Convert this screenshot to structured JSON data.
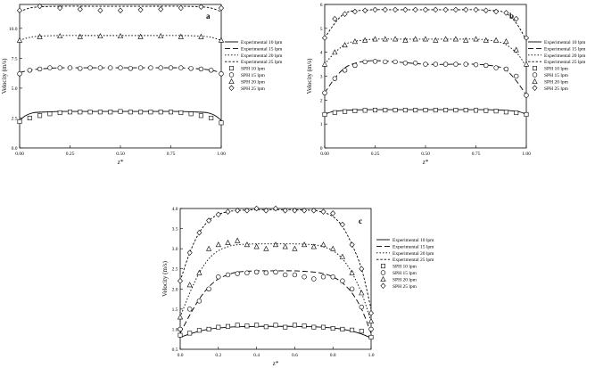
{
  "chart_data": [
    {
      "panel_label": "a",
      "type": "line",
      "xlabel": "z*",
      "ylabel": "Velocity (m/s)",
      "xlim": [
        0.0,
        1.0
      ],
      "ylim": [
        0.0,
        12.0
      ],
      "xticks": [
        "0.00",
        "0.25",
        "0.50",
        "0.75",
        "1.00"
      ],
      "xtick_values": [
        0,
        0.25,
        0.5,
        0.75,
        1.0
      ],
      "yticks": [
        "0.0",
        "2.5",
        "5.0",
        "7.5",
        "10.0"
      ],
      "ytick_values": [
        0,
        2.5,
        5,
        7.5,
        10
      ],
      "grid": false,
      "legend_position": "right",
      "series": [
        {
          "name": "Experimental 10 lpm",
          "style": "solid",
          "x": [
            0,
            0.03,
            0.07,
            0.12,
            0.2,
            0.3,
            0.5,
            0.7,
            0.8,
            0.88,
            0.93,
            0.97,
            1.0
          ],
          "y": [
            2.3,
            2.7,
            2.95,
            3.0,
            3.05,
            3.05,
            3.05,
            3.05,
            3.05,
            3.0,
            2.95,
            2.7,
            2.3
          ]
        },
        {
          "name": "Experimental 15 lpm",
          "style": "dashed",
          "x": [
            0,
            0.05,
            0.1,
            0.2,
            0.35,
            0.5,
            0.65,
            0.8,
            0.9,
            0.95,
            1.0
          ],
          "y": [
            6.3,
            6.5,
            6.6,
            6.7,
            6.7,
            6.7,
            6.7,
            6.7,
            6.6,
            6.5,
            6.3
          ]
        },
        {
          "name": "Experimental 20 lpm",
          "style": "dotted",
          "x": [
            0,
            0.05,
            0.1,
            0.2,
            0.35,
            0.5,
            0.65,
            0.8,
            0.9,
            0.95,
            1.0
          ],
          "y": [
            9.0,
            9.25,
            9.35,
            9.4,
            9.4,
            9.4,
            9.4,
            9.4,
            9.35,
            9.25,
            9.0
          ]
        },
        {
          "name": "Experimental 25 lpm",
          "style": "shortdot",
          "x": [
            0,
            0.05,
            0.1,
            0.2,
            0.35,
            0.5,
            0.65,
            0.8,
            0.9,
            0.95,
            1.0
          ],
          "y": [
            11.4,
            11.7,
            11.8,
            11.85,
            11.85,
            11.85,
            11.85,
            11.85,
            11.8,
            11.7,
            11.4
          ]
        },
        {
          "name": "SPH 10 lpm",
          "marker": "square",
          "x": [
            0.0,
            0.05,
            0.1,
            0.15,
            0.2,
            0.25,
            0.3,
            0.35,
            0.4,
            0.45,
            0.5,
            0.55,
            0.6,
            0.65,
            0.7,
            0.75,
            0.8,
            0.85,
            0.9,
            0.95,
            1.0
          ],
          "y": [
            2.2,
            2.5,
            2.7,
            2.85,
            2.95,
            3.0,
            3.0,
            3.0,
            3.0,
            3.0,
            3.05,
            3.0,
            3.0,
            3.0,
            3.0,
            3.0,
            2.95,
            2.85,
            2.7,
            2.5,
            2.1
          ]
        },
        {
          "name": "SPH 15 lpm",
          "marker": "circle",
          "x": [
            0.0,
            0.05,
            0.1,
            0.15,
            0.2,
            0.25,
            0.3,
            0.35,
            0.4,
            0.45,
            0.5,
            0.55,
            0.6,
            0.65,
            0.7,
            0.75,
            0.8,
            0.85,
            0.9,
            0.95,
            1.0
          ],
          "y": [
            6.2,
            6.5,
            6.6,
            6.7,
            6.7,
            6.7,
            6.65,
            6.7,
            6.7,
            6.7,
            6.7,
            6.65,
            6.7,
            6.7,
            6.7,
            6.7,
            6.7,
            6.65,
            6.6,
            6.5,
            6.2
          ]
        },
        {
          "name": "SPH 20 lpm",
          "marker": "triangle",
          "x": [
            0.0,
            0.1,
            0.2,
            0.3,
            0.4,
            0.5,
            0.6,
            0.7,
            0.8,
            0.9,
            1.0
          ],
          "y": [
            9.0,
            9.3,
            9.35,
            9.3,
            9.35,
            9.35,
            9.3,
            9.35,
            9.3,
            9.3,
            9.0
          ]
        },
        {
          "name": "SPH 25 lpm",
          "marker": "diamond",
          "x": [
            0.0,
            0.1,
            0.2,
            0.3,
            0.4,
            0.5,
            0.6,
            0.7,
            0.8,
            0.9,
            1.0
          ],
          "y": [
            11.5,
            11.85,
            11.7,
            11.6,
            11.5,
            11.5,
            11.55,
            11.6,
            11.7,
            11.8,
            11.7
          ]
        }
      ]
    },
    {
      "panel_label": "b",
      "type": "line",
      "xlabel": "z*",
      "ylabel": "Velocity (m/s)",
      "xlim": [
        0.0,
        1.0
      ],
      "ylim": [
        0,
        6
      ],
      "xticks": [
        "0.00",
        "0.25",
        "0.50",
        "0.75",
        "1.00"
      ],
      "xtick_values": [
        0,
        0.25,
        0.5,
        0.75,
        1.0
      ],
      "yticks": [
        "0",
        "1",
        "2",
        "3",
        "4",
        "5",
        "6"
      ],
      "ytick_values": [
        0,
        1,
        2,
        3,
        4,
        5,
        6
      ],
      "grid": false,
      "legend_position": "right",
      "series": [
        {
          "name": "Experimental 10 lpm",
          "style": "solid",
          "x": [
            0,
            0.03,
            0.07,
            0.12,
            0.2,
            0.3,
            0.5,
            0.7,
            0.8,
            0.88,
            0.93,
            0.97,
            1.0
          ],
          "y": [
            1.4,
            1.5,
            1.55,
            1.58,
            1.6,
            1.6,
            1.6,
            1.6,
            1.6,
            1.58,
            1.55,
            1.5,
            1.4
          ]
        },
        {
          "name": "Experimental 15 lpm",
          "style": "dashed",
          "x": [
            0,
            0.04,
            0.08,
            0.12,
            0.18,
            0.25,
            0.35,
            0.5,
            0.65,
            0.75,
            0.82,
            0.88,
            0.92,
            0.96,
            1.0
          ],
          "y": [
            2.3,
            2.8,
            3.2,
            3.45,
            3.6,
            3.65,
            3.6,
            3.5,
            3.5,
            3.5,
            3.45,
            3.35,
            3.1,
            2.7,
            2.2
          ]
        },
        {
          "name": "Experimental 20 lpm",
          "style": "dotted",
          "x": [
            0,
            0.04,
            0.08,
            0.12,
            0.18,
            0.25,
            0.35,
            0.5,
            0.65,
            0.75,
            0.82,
            0.88,
            0.92,
            0.96,
            1.0
          ],
          "y": [
            3.5,
            3.9,
            4.2,
            4.4,
            4.5,
            4.55,
            4.55,
            4.55,
            4.55,
            4.55,
            4.5,
            4.4,
            4.2,
            3.9,
            3.4
          ]
        },
        {
          "name": "Experimental 25 lpm",
          "style": "shortdot",
          "x": [
            0,
            0.04,
            0.08,
            0.12,
            0.18,
            0.25,
            0.35,
            0.5,
            0.65,
            0.75,
            0.82,
            0.88,
            0.92,
            0.96,
            1.0
          ],
          "y": [
            4.6,
            5.1,
            5.5,
            5.7,
            5.75,
            5.78,
            5.78,
            5.78,
            5.78,
            5.78,
            5.75,
            5.7,
            5.5,
            5.1,
            4.5
          ]
        },
        {
          "name": "SPH 10 lpm",
          "marker": "square",
          "x": [
            0.0,
            0.05,
            0.1,
            0.15,
            0.2,
            0.25,
            0.3,
            0.35,
            0.4,
            0.45,
            0.5,
            0.55,
            0.6,
            0.65,
            0.7,
            0.75,
            0.8,
            0.85,
            0.9,
            0.95,
            1.0
          ],
          "y": [
            1.4,
            1.48,
            1.52,
            1.55,
            1.57,
            1.58,
            1.58,
            1.58,
            1.58,
            1.58,
            1.58,
            1.58,
            1.58,
            1.58,
            1.58,
            1.57,
            1.56,
            1.54,
            1.5,
            1.47,
            1.4
          ]
        },
        {
          "name": "SPH 15 lpm",
          "marker": "circle",
          "x": [
            0.0,
            0.05,
            0.1,
            0.15,
            0.2,
            0.25,
            0.3,
            0.35,
            0.4,
            0.45,
            0.5,
            0.55,
            0.6,
            0.65,
            0.7,
            0.75,
            0.8,
            0.85,
            0.9,
            0.95,
            1.0
          ],
          "y": [
            2.3,
            2.9,
            3.25,
            3.45,
            3.6,
            3.62,
            3.6,
            3.6,
            3.55,
            3.55,
            3.5,
            3.5,
            3.5,
            3.5,
            3.5,
            3.48,
            3.45,
            3.35,
            3.3,
            3.0,
            2.2
          ]
        },
        {
          "name": "SPH 20 lpm",
          "marker": "triangle",
          "x": [
            0.0,
            0.05,
            0.1,
            0.15,
            0.2,
            0.25,
            0.3,
            0.35,
            0.4,
            0.45,
            0.5,
            0.55,
            0.6,
            0.65,
            0.7,
            0.75,
            0.8,
            0.85,
            0.9,
            0.95,
            1.0
          ],
          "y": [
            3.5,
            4.0,
            4.3,
            4.45,
            4.5,
            4.55,
            4.55,
            4.55,
            4.5,
            4.55,
            4.55,
            4.5,
            4.55,
            4.55,
            4.5,
            4.55,
            4.5,
            4.5,
            4.45,
            4.1,
            3.5
          ]
        },
        {
          "name": "SPH 25 lpm",
          "marker": "diamond",
          "x": [
            0.0,
            0.05,
            0.1,
            0.15,
            0.2,
            0.25,
            0.3,
            0.35,
            0.4,
            0.45,
            0.5,
            0.55,
            0.6,
            0.65,
            0.7,
            0.75,
            0.8,
            0.85,
            0.9,
            0.95,
            1.0
          ],
          "y": [
            4.6,
            5.4,
            5.6,
            5.7,
            5.75,
            5.78,
            5.78,
            5.78,
            5.78,
            5.78,
            5.78,
            5.78,
            5.78,
            5.78,
            5.78,
            5.78,
            5.75,
            5.7,
            5.65,
            5.4,
            4.6
          ]
        }
      ]
    },
    {
      "panel_label": "c",
      "type": "line",
      "xlabel": "z*",
      "ylabel": "Velocity (m/s)",
      "xlim": [
        0.0,
        1.0
      ],
      "ylim": [
        0.5,
        4.0
      ],
      "xticks": [
        "0.0",
        "0.2",
        "0.4",
        "0.6",
        "0.8",
        "1.0"
      ],
      "xtick_values": [
        0,
        0.2,
        0.4,
        0.6,
        0.8,
        1.0
      ],
      "yticks": [
        "0.5",
        "1.0",
        "1.5",
        "2.0",
        "2.5",
        "3.0",
        "3.5",
        "4.0"
      ],
      "ytick_values": [
        0.5,
        1.0,
        1.5,
        2.0,
        2.5,
        3.0,
        3.5,
        4.0
      ],
      "grid": false,
      "legend_position": "right",
      "series": [
        {
          "name": "Experimental 10 lpm",
          "style": "solid",
          "x": [
            0,
            0.05,
            0.1,
            0.15,
            0.2,
            0.3,
            0.4,
            0.5,
            0.6,
            0.7,
            0.8,
            0.85,
            0.9,
            0.95,
            1.0
          ],
          "y": [
            0.8,
            0.88,
            0.95,
            1.0,
            1.03,
            1.06,
            1.07,
            1.07,
            1.07,
            1.06,
            1.03,
            1.0,
            0.95,
            0.88,
            0.78
          ]
        },
        {
          "name": "Experimental 15 lpm",
          "style": "dashed",
          "x": [
            0,
            0.05,
            0.1,
            0.15,
            0.2,
            0.25,
            0.3,
            0.4,
            0.5,
            0.6,
            0.7,
            0.75,
            0.8,
            0.85,
            0.9,
            0.95,
            1.0
          ],
          "y": [
            0.9,
            1.35,
            1.75,
            2.05,
            2.25,
            2.35,
            2.42,
            2.45,
            2.45,
            2.45,
            2.42,
            2.38,
            2.3,
            2.15,
            1.9,
            1.5,
            0.9
          ]
        },
        {
          "name": "Experimental 20 lpm",
          "style": "dotted",
          "x": [
            0,
            0.05,
            0.1,
            0.15,
            0.2,
            0.25,
            0.3,
            0.4,
            0.5,
            0.6,
            0.7,
            0.75,
            0.8,
            0.85,
            0.9,
            0.95,
            1.0
          ],
          "y": [
            1.3,
            1.9,
            2.4,
            2.75,
            2.95,
            3.05,
            3.1,
            3.12,
            3.12,
            3.12,
            3.1,
            3.05,
            2.95,
            2.75,
            2.4,
            1.9,
            1.2
          ]
        },
        {
          "name": "Experimental 25 lpm",
          "style": "shortdot",
          "x": [
            0,
            0.05,
            0.1,
            0.15,
            0.2,
            0.25,
            0.3,
            0.4,
            0.5,
            0.6,
            0.7,
            0.75,
            0.8,
            0.85,
            0.9,
            0.95,
            1.0
          ],
          "y": [
            2.2,
            2.9,
            3.4,
            3.7,
            3.85,
            3.92,
            3.95,
            3.97,
            3.97,
            3.97,
            3.95,
            3.9,
            3.8,
            3.55,
            3.1,
            2.5,
            1.5
          ]
        },
        {
          "name": "SPH 10 lpm",
          "marker": "square",
          "x": [
            0.0,
            0.05,
            0.1,
            0.15,
            0.2,
            0.25,
            0.3,
            0.35,
            0.4,
            0.45,
            0.5,
            0.55,
            0.6,
            0.65,
            0.7,
            0.75,
            0.8,
            0.85,
            0.9,
            0.95,
            1.0
          ],
          "y": [
            0.85,
            0.9,
            0.97,
            1.0,
            1.05,
            1.07,
            1.1,
            1.08,
            1.1,
            1.06,
            1.1,
            1.05,
            1.1,
            1.08,
            1.05,
            1.05,
            1.02,
            1.0,
            0.98,
            0.95,
            0.8
          ]
        },
        {
          "name": "SPH 15 lpm",
          "marker": "circle",
          "x": [
            0.0,
            0.05,
            0.1,
            0.15,
            0.2,
            0.25,
            0.3,
            0.35,
            0.4,
            0.45,
            0.5,
            0.55,
            0.6,
            0.65,
            0.7,
            0.75,
            0.8,
            0.85,
            0.9,
            0.95,
            1.0
          ],
          "y": [
            1.0,
            1.5,
            1.7,
            2.0,
            2.3,
            2.35,
            2.38,
            2.4,
            2.42,
            2.4,
            2.42,
            2.35,
            2.35,
            2.3,
            2.25,
            2.3,
            2.3,
            2.2,
            2.0,
            1.55,
            1.0
          ]
        },
        {
          "name": "SPH 20 lpm",
          "marker": "triangle",
          "x": [
            0.0,
            0.05,
            0.1,
            0.15,
            0.2,
            0.25,
            0.3,
            0.35,
            0.4,
            0.45,
            0.5,
            0.55,
            0.6,
            0.65,
            0.7,
            0.75,
            0.8,
            0.85,
            0.9,
            0.95,
            1.0
          ],
          "y": [
            1.3,
            2.1,
            2.4,
            3.0,
            3.1,
            3.15,
            3.2,
            3.1,
            3.05,
            3.0,
            3.1,
            3.05,
            3.0,
            3.1,
            3.05,
            3.1,
            3.0,
            2.8,
            2.4,
            1.9,
            1.2
          ]
        },
        {
          "name": "SPH 25 lpm",
          "marker": "diamond",
          "x": [
            0.0,
            0.05,
            0.1,
            0.15,
            0.2,
            0.25,
            0.3,
            0.35,
            0.4,
            0.45,
            0.5,
            0.55,
            0.6,
            0.65,
            0.7,
            0.75,
            0.8,
            0.85,
            0.9,
            0.95,
            1.0
          ],
          "y": [
            2.2,
            2.9,
            3.4,
            3.7,
            3.85,
            3.92,
            3.95,
            3.95,
            4.0,
            3.95,
            4.0,
            3.95,
            3.95,
            3.95,
            3.95,
            3.92,
            3.88,
            3.6,
            3.1,
            2.5,
            1.4
          ]
        }
      ]
    }
  ]
}
